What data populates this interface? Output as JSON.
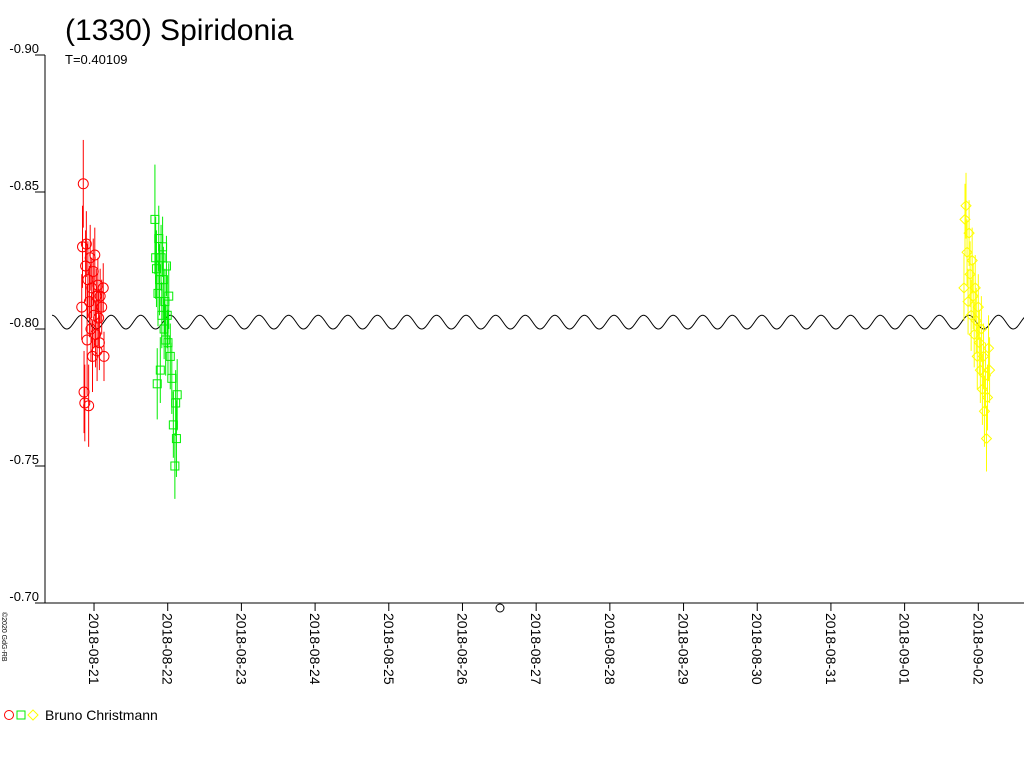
{
  "chart_data": {
    "type": "scatter",
    "title": "(1330) Spiridonia",
    "subtitle": "T=0.40109",
    "observer": "Bruno Christmann",
    "copyright": "©2020 GdG-RB",
    "xlim": [
      "2018-08-20 08:02",
      "2018-09-02 14:53"
    ],
    "xticks": [
      "2018-08-21",
      "2018-08-22",
      "2018-08-23",
      "2018-08-24",
      "2018-08-25",
      "2018-08-26",
      "2018-08-27",
      "2018-08-28",
      "2018-08-29",
      "2018-08-30",
      "2018-08-31",
      "2018-09-01",
      "2018-09-02"
    ],
    "ylim": [
      -0.7,
      -0.9
    ],
    "yticks": [
      {
        "value": -0.9,
        "label": "-0.90"
      },
      {
        "value": -0.85,
        "label": "-0.85"
      },
      {
        "value": -0.8,
        "label": "-0.80"
      },
      {
        "value": -0.75,
        "label": "-0.75"
      },
      {
        "value": -0.7,
        "label": "-0.70"
      }
    ],
    "series": [
      {
        "color": "#ff0000",
        "marker": "circle",
        "x": [
          "2018-08-20 20:00",
          "2018-08-20 20:15",
          "2018-08-20 20:30",
          "2018-08-20 20:45",
          "2018-08-20 21:00",
          "2018-08-20 21:15",
          "2018-08-20 21:30",
          "2018-08-20 21:45",
          "2018-08-20 22:00",
          "2018-08-20 22:15",
          "2018-08-20 22:30",
          "2018-08-20 22:45",
          "2018-08-20 23:00",
          "2018-08-20 23:15",
          "2018-08-20 23:30",
          "2018-08-20 23:45",
          "2018-08-21 00:00",
          "2018-08-21 00:15",
          "2018-08-21 00:30",
          "2018-08-21 00:45",
          "2018-08-21 01:00",
          "2018-08-21 01:15",
          "2018-08-21 01:30",
          "2018-08-21 01:45",
          "2018-08-21 02:00",
          "2018-08-21 02:30",
          "2018-08-21 03:00",
          "2018-08-21 03:15"
        ],
        "values": [
          -0.808,
          -0.83,
          -0.853,
          -0.777,
          -0.773,
          -0.823,
          -0.831,
          -0.796,
          -0.818,
          -0.772,
          -0.81,
          -0.826,
          -0.8,
          -0.815,
          -0.79,
          -0.821,
          -0.805,
          -0.827,
          -0.798,
          -0.812,
          -0.792,
          -0.816,
          -0.804,
          -0.795,
          -0.812,
          -0.808,
          -0.815,
          -0.79
        ],
        "errors": [
          0.012,
          0.015,
          0.016,
          0.015,
          0.014,
          0.013,
          0.012,
          0.02,
          0.014,
          0.015,
          0.013,
          0.012,
          0.012,
          0.011,
          0.013,
          0.012,
          0.012,
          0.01,
          0.012,
          0.01,
          0.011,
          0.01,
          0.01,
          0.01,
          0.01,
          0.01,
          0.009,
          0.009
        ]
      },
      {
        "color": "#00ee00",
        "marker": "square",
        "x": [
          "2018-08-21 19:50",
          "2018-08-21 20:05",
          "2018-08-21 20:20",
          "2018-08-21 20:35",
          "2018-08-21 20:50",
          "2018-08-21 21:05",
          "2018-08-21 21:20",
          "2018-08-21 21:35",
          "2018-08-21 21:50",
          "2018-08-21 22:05",
          "2018-08-21 22:20",
          "2018-08-21 22:35",
          "2018-08-21 22:50",
          "2018-08-21 23:05",
          "2018-08-21 23:20",
          "2018-08-21 23:35",
          "2018-08-21 23:50",
          "2018-08-22 00:05",
          "2018-08-22 00:20",
          "2018-08-22 00:50",
          "2018-08-22 01:20",
          "2018-08-22 01:50",
          "2018-08-22 02:20",
          "2018-08-22 02:35",
          "2018-08-22 02:50",
          "2018-08-22 03:05"
        ],
        "values": [
          -0.84,
          -0.826,
          -0.822,
          -0.78,
          -0.813,
          -0.833,
          -0.818,
          -0.785,
          -0.826,
          -0.805,
          -0.83,
          -0.818,
          -0.8,
          -0.81,
          -0.796,
          -0.823,
          -0.805,
          -0.795,
          -0.812,
          -0.79,
          -0.782,
          -0.765,
          -0.75,
          -0.773,
          -0.76,
          -0.776
        ],
        "errors": [
          0.02,
          0.015,
          0.014,
          0.013,
          0.012,
          0.012,
          0.013,
          0.012,
          0.012,
          0.012,
          0.011,
          0.012,
          0.011,
          0.012,
          0.013,
          0.011,
          0.012,
          0.012,
          0.012,
          0.012,
          0.013,
          0.012,
          0.012,
          0.012,
          0.014,
          0.013
        ]
      },
      {
        "color": "#ffff00",
        "marker": "diamond",
        "x": [
          "2018-09-01 19:20",
          "2018-09-01 19:40",
          "2018-09-01 20:00",
          "2018-09-01 20:20",
          "2018-09-01 20:40",
          "2018-09-01 21:00",
          "2018-09-01 21:20",
          "2018-09-01 21:40",
          "2018-09-01 22:00",
          "2018-09-01 22:20",
          "2018-09-01 22:40",
          "2018-09-01 23:00",
          "2018-09-01 23:20",
          "2018-09-01 23:40",
          "2018-09-02 00:00",
          "2018-09-02 00:20",
          "2018-09-02 00:40",
          "2018-09-02 01:00",
          "2018-09-02 01:20",
          "2018-09-02 01:40",
          "2018-09-02 02:00",
          "2018-09-02 02:20",
          "2018-09-02 02:40",
          "2018-09-02 03:00",
          "2018-09-02 03:20",
          "2018-09-02 03:40"
        ],
        "values": [
          -0.815,
          -0.84,
          -0.845,
          -0.828,
          -0.81,
          -0.835,
          -0.82,
          -0.805,
          -0.825,
          -0.812,
          -0.798,
          -0.815,
          -0.803,
          -0.79,
          -0.808,
          -0.795,
          -0.785,
          -0.8,
          -0.778,
          -0.79,
          -0.77,
          -0.783,
          -0.76,
          -0.775,
          -0.793,
          -0.785
        ],
        "errors": [
          0.012,
          0.013,
          0.012,
          0.012,
          0.012,
          0.012,
          0.012,
          0.013,
          0.012,
          0.012,
          0.012,
          0.012,
          0.012,
          0.012,
          0.012,
          0.012,
          0.012,
          0.012,
          0.013,
          0.012,
          0.013,
          0.012,
          0.012,
          0.012,
          0.012,
          0.012
        ]
      }
    ],
    "model": {
      "color": "#000000",
      "x": [
        "2018-08-20 10:19",
        "2018-08-20 15:08",
        "2018-08-20 19:57",
        "2018-08-21 00:46",
        "2018-08-21 05:35",
        "2018-08-21 10:24",
        "2018-08-21 15:13",
        "2018-08-21 20:02",
        "2018-08-22 00:51",
        "2018-08-22 05:40",
        "2018-08-22 10:29",
        "2018-08-22 15:18",
        "2018-08-22 20:07",
        "2018-08-23 00:56",
        "2018-08-23 05:45",
        "2018-08-23 10:34",
        "2018-08-23 15:23",
        "2018-08-23 20:12",
        "2018-08-24 01:01",
        "2018-08-24 05:50",
        "2018-08-24 10:39",
        "2018-08-24 15:28",
        "2018-08-24 20:17",
        "2018-08-25 01:06",
        "2018-08-25 05:55",
        "2018-08-25 10:44",
        "2018-08-25 15:33",
        "2018-08-25 20:22",
        "2018-08-26 01:11",
        "2018-08-26 06:00",
        "2018-08-26 10:49",
        "2018-08-26 15:38",
        "2018-08-26 20:27",
        "2018-08-27 01:16",
        "2018-08-27 06:05",
        "2018-08-27 10:54",
        "2018-08-27 15:43",
        "2018-08-27 20:32",
        "2018-08-28 01:21",
        "2018-08-28 06:10",
        "2018-08-28 10:59",
        "2018-08-28 15:48",
        "2018-08-28 20:37",
        "2018-08-29 01:26",
        "2018-08-29 06:15",
        "2018-08-29 11:04",
        "2018-08-29 15:53",
        "2018-08-29 20:42",
        "2018-08-30 01:31",
        "2018-08-30 06:20",
        "2018-08-30 11:09",
        "2018-08-30 15:58",
        "2018-08-30 20:47",
        "2018-08-31 01:36",
        "2018-08-31 06:25",
        "2018-08-31 11:14",
        "2018-08-31 16:03",
        "2018-08-31 20:52",
        "2018-09-01 01:41",
        "2018-09-01 06:30",
        "2018-09-01 11:19",
        "2018-09-01 16:08",
        "2018-09-01 20:57",
        "2018-09-02 01:46",
        "2018-09-02 06:35",
        "2018-09-02 11:24",
        "2018-09-02 16:13"
      ],
      "values": [
        -0.805,
        -0.8,
        -0.805,
        -0.8,
        -0.805,
        -0.8,
        -0.805,
        -0.8,
        -0.805,
        -0.8,
        -0.805,
        -0.8,
        -0.805,
        -0.8,
        -0.805,
        -0.8,
        -0.805,
        -0.8,
        -0.805,
        -0.8,
        -0.805,
        -0.8,
        -0.805,
        -0.8,
        -0.805,
        -0.8,
        -0.805,
        -0.8,
        -0.805,
        -0.8,
        -0.805,
        -0.8,
        -0.805,
        -0.8,
        -0.805,
        -0.8,
        -0.805,
        -0.8,
        -0.805,
        -0.8,
        -0.805,
        -0.8,
        -0.805,
        -0.8,
        -0.805,
        -0.8,
        -0.805,
        -0.8,
        -0.805,
        -0.8,
        -0.805,
        -0.8,
        -0.805,
        -0.8,
        -0.805,
        -0.8,
        -0.805,
        -0.8,
        -0.805,
        -0.8,
        -0.805,
        -0.8,
        -0.805,
        -0.8,
        -0.805,
        -0.8,
        -0.805
      ]
    }
  }
}
